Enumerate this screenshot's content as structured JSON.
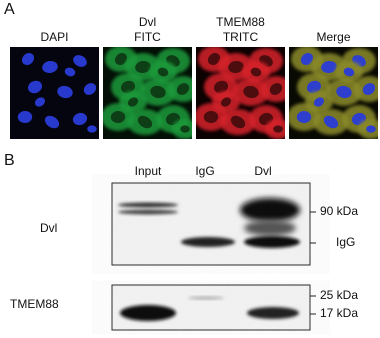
{
  "panel_a": {
    "label": "A",
    "columns": [
      {
        "lines": [
          "DAPI"
        ]
      },
      {
        "lines": [
          "Dvl",
          "FITC"
        ]
      },
      {
        "lines": [
          "TMEM88",
          "TRITC"
        ]
      },
      {
        "lines": [
          "Merge"
        ]
      }
    ]
  },
  "panel_b": {
    "label": "B",
    "lanes": [
      "Input",
      "IgG",
      "Dvl"
    ],
    "blots": [
      {
        "label": "Dvl",
        "markers": [
          "90 kDa",
          "IgG"
        ]
      },
      {
        "label": "TMEM88",
        "markers": [
          "25 kDa",
          "17 kDa"
        ]
      }
    ]
  }
}
